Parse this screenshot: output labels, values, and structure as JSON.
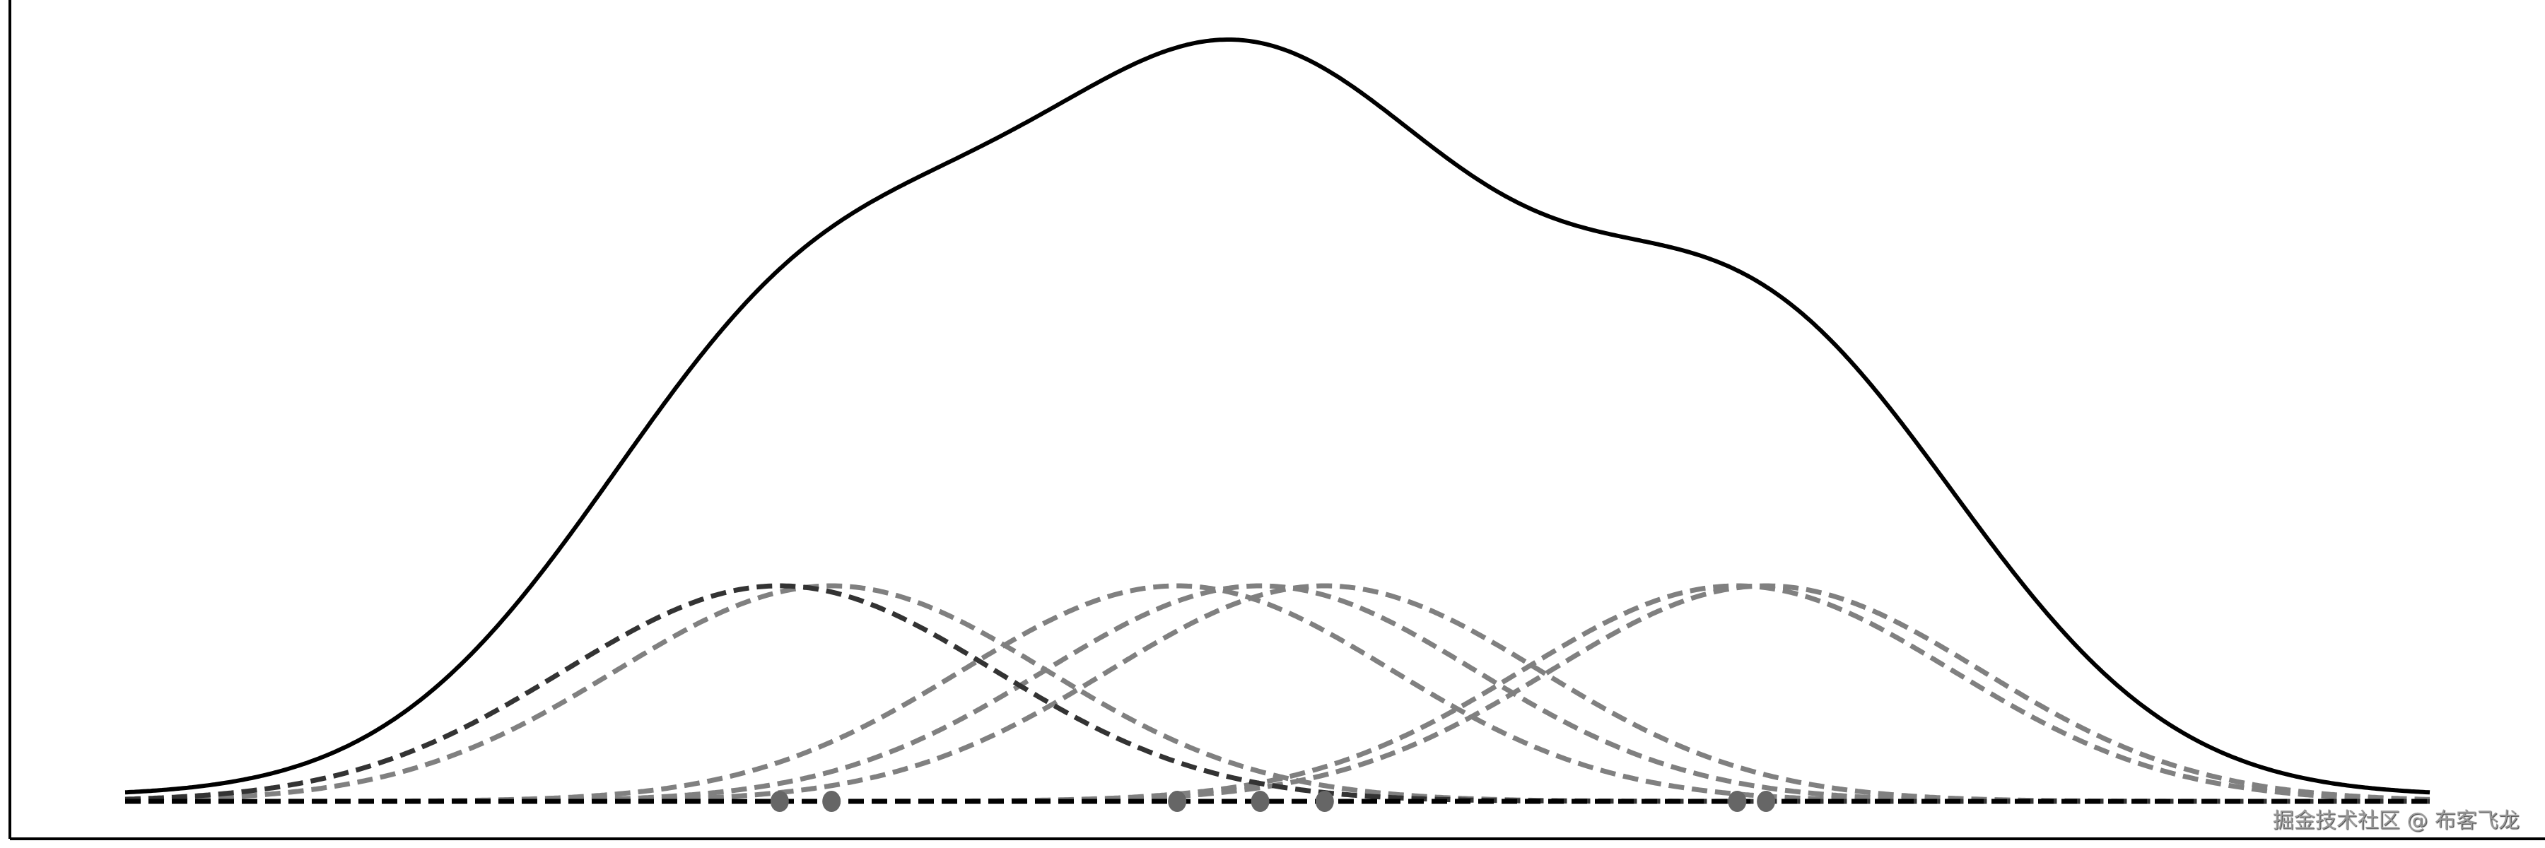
{
  "chart_data": {
    "type": "line",
    "title": "",
    "xlabel": "",
    "ylabel": "",
    "xlim": [
      0,
      22
    ],
    "x_range_drawn": [
      1,
      21
    ],
    "points": [
      6.68,
      7.13,
      10.13,
      10.85,
      11.41,
      14.99,
      15.24
    ],
    "kernel": "gaussian",
    "bandwidth": 1.87,
    "highlighted_kernel_index": 0,
    "grid": false,
    "ticks": false,
    "series": [
      {
        "role": "sum-density",
        "style": "solid",
        "color": "#000000"
      },
      {
        "role": "individual-kernels",
        "style": "dashed",
        "color": "#808080"
      },
      {
        "role": "highlighted-kernel",
        "style": "dashed",
        "color": "#333333"
      },
      {
        "role": "baseline",
        "style": "dashed",
        "color": "#000000"
      }
    ],
    "point_color": "#666666"
  },
  "watermark": "掘金技术社区 @ 布客飞龙"
}
